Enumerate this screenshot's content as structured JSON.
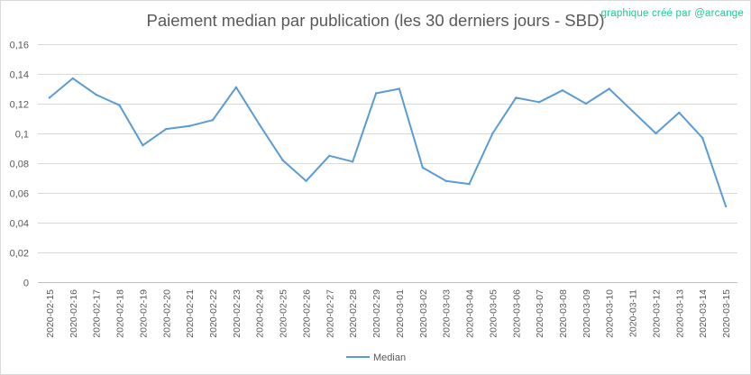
{
  "chart_data": {
    "type": "line",
    "title": "Paiement median par publication (les 30 derniers jours - SBD)",
    "annotation": "graphique créé par @arcange",
    "xlabel": "",
    "ylabel": "",
    "ylim": [
      0,
      0.16
    ],
    "y_ticks": [
      "0",
      "0,02",
      "0,04",
      "0,06",
      "0,08",
      "0,1",
      "0,12",
      "0,14",
      "0,16"
    ],
    "grid": true,
    "legend_position": "bottom",
    "categories": [
      "2020-02-15",
      "2020-02-16",
      "2020-02-17",
      "2020-02-18",
      "2020-02-19",
      "2020-02-20",
      "2020-02-21",
      "2020-02-22",
      "2020-02-23",
      "2020-02-24",
      "2020-02-25",
      "2020-02-26",
      "2020-02-27",
      "2020-02-28",
      "2020-02-29",
      "2020-03-01",
      "2020-03-02",
      "2020-03-03",
      "2020-03-04",
      "2020-03-05",
      "2020-03-06",
      "2020-03-07",
      "2020-03-08",
      "2020-03-09",
      "2020-03-10",
      "2020-03-11",
      "2020-03-12",
      "2020-03-13",
      "2020-03-14",
      "2020-03-15"
    ],
    "series": [
      {
        "name": "Median",
        "color": "#5b9bd5",
        "values": [
          0.124,
          0.137,
          0.126,
          0.119,
          0.092,
          0.103,
          0.105,
          0.109,
          0.131,
          0.106,
          0.082,
          0.068,
          0.085,
          0.081,
          0.127,
          0.13,
          0.077,
          0.068,
          0.066,
          0.1,
          0.124,
          0.121,
          0.129,
          0.12,
          0.13,
          0.115,
          0.1,
          0.114,
          0.097,
          0.051
        ]
      }
    ]
  }
}
